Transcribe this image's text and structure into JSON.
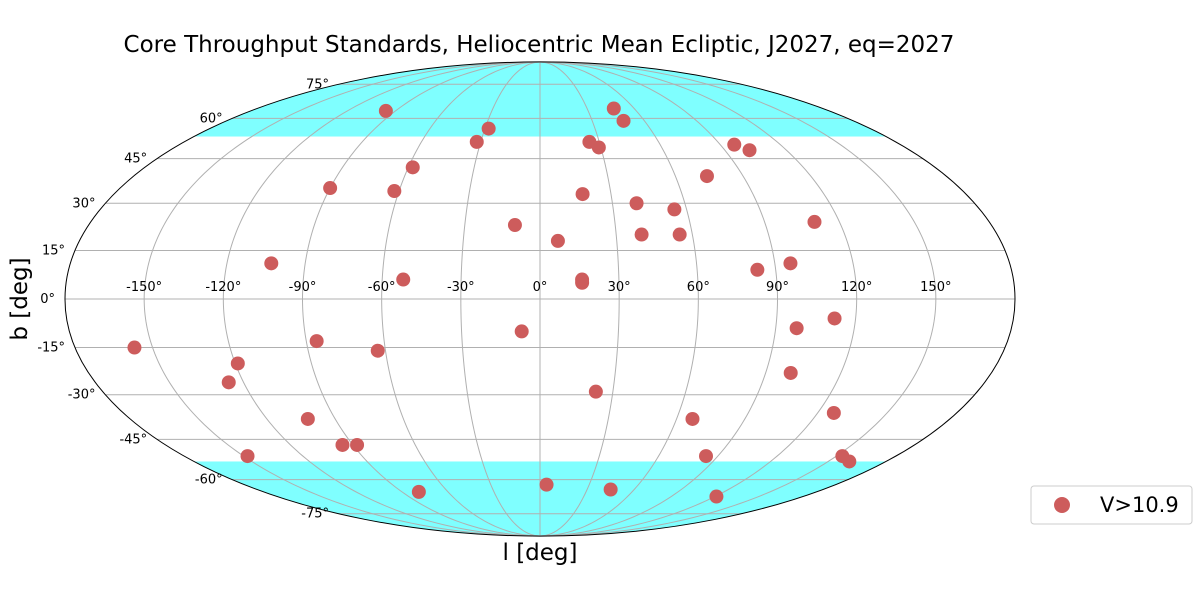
{
  "chart_data": {
    "type": "scatter",
    "projection": "mollweide",
    "title": "Core Throughput Standards, Heliocentric Mean Ecliptic, J2027, eq=2027",
    "xlabel": "l [deg]",
    "ylabel": "b [deg]",
    "xlim": [
      -180,
      180
    ],
    "ylim": [
      -90,
      90
    ],
    "grid": true,
    "xticks": [
      -150,
      -120,
      -90,
      -60,
      -30,
      0,
      30,
      60,
      90,
      120,
      150
    ],
    "yticks": [
      -75,
      -60,
      -45,
      -30,
      -15,
      0,
      15,
      30,
      45,
      60,
      75
    ],
    "xtick_labels": [
      "-150°",
      "-120°",
      "-90°",
      "-60°",
      "-30°",
      "0°",
      "30°",
      "60°",
      "90°",
      "120°",
      "150°"
    ],
    "ytick_labels": [
      "-75°",
      "-60°",
      "-45°",
      "-30°",
      "-15°",
      "0°",
      "15°",
      "30°",
      "45°",
      "60°",
      "75°"
    ],
    "shaded_bands": [
      {
        "b_range": [
          53,
          90
        ],
        "color": "#7fffff"
      },
      {
        "b_range": [
          -90,
          -53
        ],
        "color": "#7fffff"
      }
    ],
    "legend": {
      "placement": "bottom-right, outside plot"
    },
    "series": [
      {
        "name": "V>10.9",
        "color": "#cd5c5c",
        "points": [
          {
            "x": -96,
            "y": 63
          },
          {
            "x": -28,
            "y": 56
          },
          {
            "x": -32,
            "y": 51
          },
          {
            "x": -58,
            "y": 42
          },
          {
            "x": 47,
            "y": 64
          },
          {
            "x": 48,
            "y": 59
          },
          {
            "x": 25,
            "y": 51
          },
          {
            "x": 29,
            "y": 49
          },
          {
            "x": 97,
            "y": 50
          },
          {
            "x": 102,
            "y": 48
          },
          {
            "x": -90,
            "y": 35
          },
          {
            "x": -62,
            "y": 34
          },
          {
            "x": 18,
            "y": 33
          },
          {
            "x": 74,
            "y": 39
          },
          {
            "x": 40,
            "y": 30
          },
          {
            "x": 55,
            "y": 28
          },
          {
            "x": 110,
            "y": 24
          },
          {
            "x": -10,
            "y": 23
          },
          {
            "x": 7,
            "y": 18
          },
          {
            "x": 40,
            "y": 20
          },
          {
            "x": 55,
            "y": 20
          },
          {
            "x": -103,
            "y": 11
          },
          {
            "x": 83,
            "y": 9
          },
          {
            "x": 96,
            "y": 11
          },
          {
            "x": -52,
            "y": 6
          },
          {
            "x": 16,
            "y": 6
          },
          {
            "x": 16,
            "y": 5
          },
          {
            "x": 112,
            "y": -6
          },
          {
            "x": 98,
            "y": -9
          },
          {
            "x": -7,
            "y": -10
          },
          {
            "x": -86,
            "y": -13
          },
          {
            "x": -63,
            "y": -16
          },
          {
            "x": -157,
            "y": -15
          },
          {
            "x": -119,
            "y": -20
          },
          {
            "x": -126,
            "y": -26
          },
          {
            "x": 100,
            "y": -23
          },
          {
            "x": 23,
            "y": -29
          },
          {
            "x": 127,
            "y": -36
          },
          {
            "x": -102,
            "y": -38
          },
          {
            "x": 67,
            "y": -38
          },
          {
            "x": -88,
            "y": -47
          },
          {
            "x": -95,
            "y": -47
          },
          {
            "x": 84,
            "y": -51
          },
          {
            "x": 153,
            "y": -51
          },
          {
            "x": -148,
            "y": -51
          },
          {
            "x": 161,
            "y": -53
          },
          {
            "x": -79,
            "y": -65
          },
          {
            "x": 4,
            "y": -62
          },
          {
            "x": 45,
            "y": -64
          },
          {
            "x": 121,
            "y": -67
          }
        ]
      }
    ]
  }
}
